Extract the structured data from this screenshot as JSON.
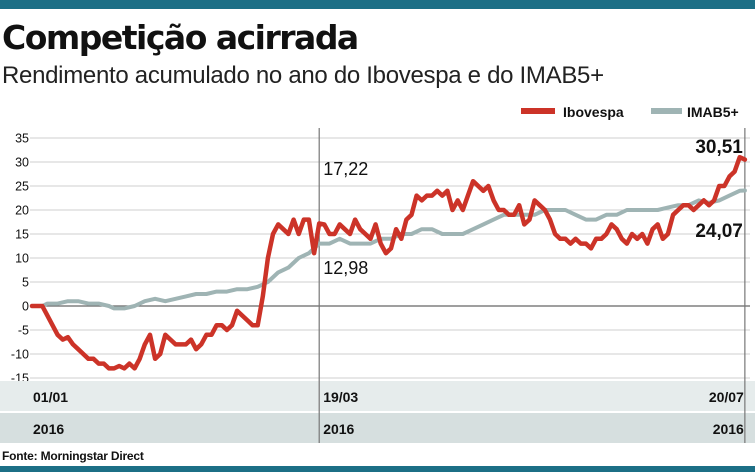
{
  "header": {
    "title": "Competição acirrada",
    "subtitle": "Rendimento acumulado no ano do Ibovespa e do IMAB5+"
  },
  "footer": {
    "source": "Fonte: Morningstar Direct"
  },
  "colors": {
    "ibovespa": "#cc3328",
    "imab5": "#9fb4b4",
    "band_light": "#e6ecec",
    "band_dark": "#d6dfdf",
    "accent": "#1c6f86"
  },
  "chart_data": {
    "type": "line",
    "title": "Competição acirrada",
    "subtitle": "Rendimento acumulado no ano do Ibovespa e do IMAB5+",
    "ylim": [
      -15,
      35
    ],
    "yticks": [
      35,
      30,
      25,
      20,
      15,
      10,
      5,
      0,
      -5,
      -10,
      -15
    ],
    "ytick_labels": [
      "35",
      "30",
      "25",
      "20",
      "15",
      "10",
      "5",
      "0",
      "-5",
      "-10",
      "-15"
    ],
    "grid": true,
    "legend_position": "top-right",
    "x_range": [
      0,
      140
    ],
    "x_markers": [
      {
        "x": 0,
        "date": "01/01",
        "year": "2016"
      },
      {
        "x": 56,
        "date": "19/03",
        "year": "2016"
      },
      {
        "x": 139,
        "date": "20/07",
        "year": "2016"
      }
    ],
    "annotations": [
      {
        "series": "Ibovespa",
        "x": 56,
        "value": 17.22,
        "label": "17,22"
      },
      {
        "series": "IMAB5+",
        "x": 56,
        "value": 12.98,
        "label": "12,98"
      },
      {
        "series": "Ibovespa",
        "x": 139,
        "value": 30.51,
        "label": "30,51"
      },
      {
        "series": "IMAB5+",
        "x": 139,
        "value": 24.07,
        "label": "24,07"
      }
    ],
    "series": [
      {
        "name": "Ibovespa",
        "points": [
          [
            0,
            0
          ],
          [
            2,
            0
          ],
          [
            3,
            -2
          ],
          [
            4,
            -4
          ],
          [
            5,
            -6
          ],
          [
            6,
            -7
          ],
          [
            7,
            -6.5
          ],
          [
            8,
            -8
          ],
          [
            9,
            -9
          ],
          [
            10,
            -10
          ],
          [
            11,
            -11
          ],
          [
            12,
            -11
          ],
          [
            13,
            -12
          ],
          [
            14,
            -12
          ],
          [
            15,
            -13
          ],
          [
            16,
            -13
          ],
          [
            17,
            -12.5
          ],
          [
            18,
            -13
          ],
          [
            19,
            -12
          ],
          [
            20,
            -13
          ],
          [
            21,
            -11
          ],
          [
            22,
            -8
          ],
          [
            23,
            -6
          ],
          [
            24,
            -11
          ],
          [
            25,
            -10
          ],
          [
            26,
            -6
          ],
          [
            27,
            -7
          ],
          [
            28,
            -8
          ],
          [
            29,
            -8
          ],
          [
            30,
            -8
          ],
          [
            31,
            -7
          ],
          [
            32,
            -9
          ],
          [
            33,
            -8
          ],
          [
            34,
            -6
          ],
          [
            35,
            -6
          ],
          [
            36,
            -4
          ],
          [
            37,
            -4
          ],
          [
            38,
            -5
          ],
          [
            39,
            -4
          ],
          [
            40,
            -1
          ],
          [
            41,
            -2
          ],
          [
            42,
            -3
          ],
          [
            43,
            -4
          ],
          [
            44,
            -4
          ],
          [
            45,
            2
          ],
          [
            46,
            10
          ],
          [
            47,
            15
          ],
          [
            48,
            17
          ],
          [
            49,
            16
          ],
          [
            50,
            15
          ],
          [
            51,
            18
          ],
          [
            52,
            15
          ],
          [
            53,
            18
          ],
          [
            54,
            18
          ],
          [
            55,
            11
          ],
          [
            56,
            17.2
          ],
          [
            57,
            17
          ],
          [
            58,
            15
          ],
          [
            59,
            15
          ],
          [
            60,
            17
          ],
          [
            61,
            16
          ],
          [
            62,
            15
          ],
          [
            63,
            18
          ],
          [
            64,
            16
          ],
          [
            65,
            15
          ],
          [
            66,
            14
          ],
          [
            67,
            17
          ],
          [
            68,
            13
          ],
          [
            69,
            11
          ],
          [
            70,
            12
          ],
          [
            71,
            16
          ],
          [
            72,
            14
          ],
          [
            73,
            18
          ],
          [
            74,
            19
          ],
          [
            75,
            23
          ],
          [
            76,
            22
          ],
          [
            77,
            23
          ],
          [
            78,
            23
          ],
          [
            79,
            24
          ],
          [
            80,
            23
          ],
          [
            81,
            24
          ],
          [
            82,
            20
          ],
          [
            83,
            22
          ],
          [
            84,
            20
          ],
          [
            85,
            23
          ],
          [
            86,
            26
          ],
          [
            87,
            25
          ],
          [
            88,
            24
          ],
          [
            89,
            25
          ],
          [
            90,
            22
          ],
          [
            91,
            20
          ],
          [
            92,
            20
          ],
          [
            93,
            19
          ],
          [
            94,
            19
          ],
          [
            95,
            21
          ],
          [
            96,
            17
          ],
          [
            97,
            18
          ],
          [
            98,
            22
          ],
          [
            99,
            21
          ],
          [
            100,
            20
          ],
          [
            101,
            18
          ],
          [
            102,
            15
          ],
          [
            103,
            14
          ],
          [
            104,
            14
          ],
          [
            105,
            13
          ],
          [
            106,
            14
          ],
          [
            107,
            13
          ],
          [
            108,
            13
          ],
          [
            109,
            12
          ],
          [
            110,
            14
          ],
          [
            111,
            14
          ],
          [
            112,
            15
          ],
          [
            113,
            17
          ],
          [
            114,
            16
          ],
          [
            115,
            14
          ],
          [
            116,
            13
          ],
          [
            117,
            15
          ],
          [
            118,
            14
          ],
          [
            119,
            15
          ],
          [
            120,
            13
          ],
          [
            121,
            16
          ],
          [
            122,
            17
          ],
          [
            123,
            14
          ],
          [
            124,
            15
          ],
          [
            125,
            19
          ],
          [
            126,
            20
          ],
          [
            127,
            21
          ],
          [
            128,
            21
          ],
          [
            129,
            20
          ],
          [
            130,
            21
          ],
          [
            131,
            22
          ],
          [
            132,
            21
          ],
          [
            133,
            22
          ],
          [
            134,
            25
          ],
          [
            135,
            25
          ],
          [
            136,
            27
          ],
          [
            137,
            28
          ],
          [
            138,
            31
          ],
          [
            139,
            30.5
          ]
        ]
      },
      {
        "name": "IMAB5+",
        "points": [
          [
            0,
            0
          ],
          [
            2,
            0
          ],
          [
            3,
            0.5
          ],
          [
            5,
            0.5
          ],
          [
            7,
            1
          ],
          [
            9,
            1
          ],
          [
            11,
            0.5
          ],
          [
            13,
            0.5
          ],
          [
            15,
            0
          ],
          [
            16,
            -0.5
          ],
          [
            18,
            -0.5
          ],
          [
            20,
            0
          ],
          [
            22,
            1
          ],
          [
            24,
            1.5
          ],
          [
            26,
            1
          ],
          [
            28,
            1.5
          ],
          [
            30,
            2
          ],
          [
            32,
            2.5
          ],
          [
            34,
            2.5
          ],
          [
            36,
            3
          ],
          [
            38,
            3
          ],
          [
            40,
            3.5
          ],
          [
            42,
            3.5
          ],
          [
            44,
            4
          ],
          [
            46,
            5
          ],
          [
            48,
            7
          ],
          [
            50,
            8
          ],
          [
            52,
            10
          ],
          [
            54,
            11
          ],
          [
            56,
            13
          ],
          [
            58,
            13
          ],
          [
            60,
            14
          ],
          [
            62,
            13
          ],
          [
            64,
            13
          ],
          [
            66,
            13
          ],
          [
            68,
            14
          ],
          [
            70,
            14
          ],
          [
            72,
            15
          ],
          [
            74,
            15
          ],
          [
            76,
            16
          ],
          [
            78,
            16
          ],
          [
            80,
            15
          ],
          [
            82,
            15
          ],
          [
            84,
            15
          ],
          [
            86,
            16
          ],
          [
            88,
            17
          ],
          [
            90,
            18
          ],
          [
            92,
            19
          ],
          [
            94,
            19
          ],
          [
            96,
            19
          ],
          [
            98,
            19
          ],
          [
            100,
            20
          ],
          [
            102,
            20
          ],
          [
            104,
            20
          ],
          [
            106,
            19
          ],
          [
            108,
            18
          ],
          [
            110,
            18
          ],
          [
            112,
            19
          ],
          [
            114,
            19
          ],
          [
            116,
            20
          ],
          [
            118,
            20
          ],
          [
            120,
            20
          ],
          [
            122,
            20
          ],
          [
            124,
            20.5
          ],
          [
            126,
            21
          ],
          [
            128,
            21
          ],
          [
            130,
            22
          ],
          [
            132,
            21.5
          ],
          [
            134,
            22
          ],
          [
            136,
            23
          ],
          [
            138,
            24
          ],
          [
            139,
            24.07
          ]
        ]
      }
    ]
  }
}
